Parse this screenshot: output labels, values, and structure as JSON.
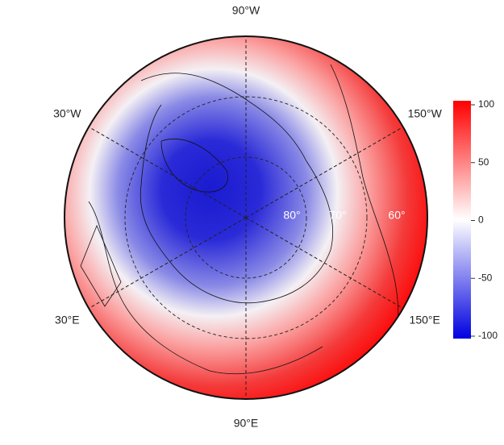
{
  "map": {
    "longitude_labels": [
      {
        "value": -90,
        "label": "90°W"
      },
      {
        "value": -30,
        "label": "30°W"
      },
      {
        "value": -150,
        "label": "150°W"
      },
      {
        "value": 30,
        "label": "30°E"
      },
      {
        "value": 150,
        "label": "150°E"
      },
      {
        "value": 90,
        "label": "90°E"
      }
    ],
    "latitude_labels": [
      {
        "value": 80,
        "label": "80°"
      },
      {
        "value": 70,
        "label": "70°"
      },
      {
        "value": 60,
        "label": "60°"
      }
    ],
    "colorbar": {
      "lim": [
        -100,
        100
      ],
      "ticks": [
        100,
        50,
        0,
        -50,
        -100
      ]
    }
  }
}
